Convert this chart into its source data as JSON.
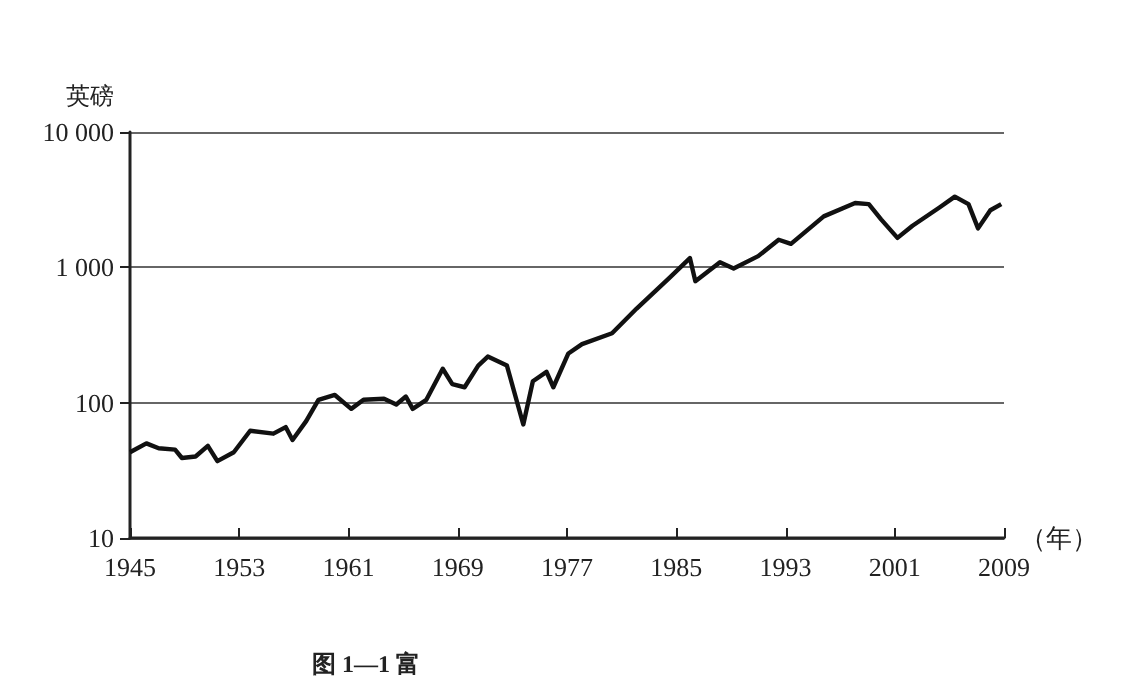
{
  "chart_data": {
    "type": "line",
    "ylabel": "英磅",
    "xlabel": "（年）",
    "annotations": [
      "图 1—1 富"
    ],
    "log": "y",
    "grid": "y",
    "marker": "none",
    "line_style": "solid",
    "xlim": [
      1945,
      2009
    ],
    "xticks": [
      1945,
      1953,
      1961,
      1969,
      1977,
      1985,
      1993,
      2001,
      2009
    ],
    "ylim": [
      10,
      10000
    ],
    "yticks": [
      10,
      100,
      {
        "value": 1000,
        "label": "1 000"
      },
      {
        "value": 10000,
        "label": "10 000"
      }
    ],
    "series": [
      {
        "color": "#111111",
        "x": [
          1945,
          1946.2,
          1947.1,
          1948.3,
          1948.8,
          1949.8,
          1950.7,
          1951.4,
          1952.6,
          1953.8,
          1955.5,
          1956.4,
          1956.9,
          1957.9,
          1958.8,
          1960,
          1961.2,
          1962.1,
          1963.6,
          1964.5,
          1965.2,
          1965.7,
          1966.7,
          1967.9,
          1968.6,
          1969.5,
          1970.5,
          1971.2,
          1972.6,
          1973.8,
          1974.5,
          1975.5,
          1976,
          1977.1,
          1978.1,
          1980.3,
          1982.1,
          1984.5,
          1986,
          1986.4,
          1988.2,
          1989.2,
          1991,
          1992.5,
          1993.4,
          1995.8,
          1998.1,
          1999.1,
          2000,
          2001.2,
          2002.3,
          2004.3,
          2005.4,
          2006.4,
          2007.1,
          2008,
          2008.8
        ],
        "values": [
          43,
          50,
          46,
          45,
          39,
          40,
          48,
          37,
          43,
          62,
          59,
          66,
          53,
          73,
          105,
          114,
          90,
          105,
          107,
          97,
          111,
          90,
          105,
          178,
          137,
          130,
          188,
          219,
          188,
          69,
          144,
          169,
          130,
          231,
          271,
          326,
          496,
          837,
          1170,
          790,
          1090,
          980,
          1210,
          1600,
          1490,
          2380,
          2990,
          2930,
          2260,
          1650,
          2030,
          2780,
          3330,
          2930,
          1940,
          2640,
          2930
        ]
      }
    ]
  }
}
